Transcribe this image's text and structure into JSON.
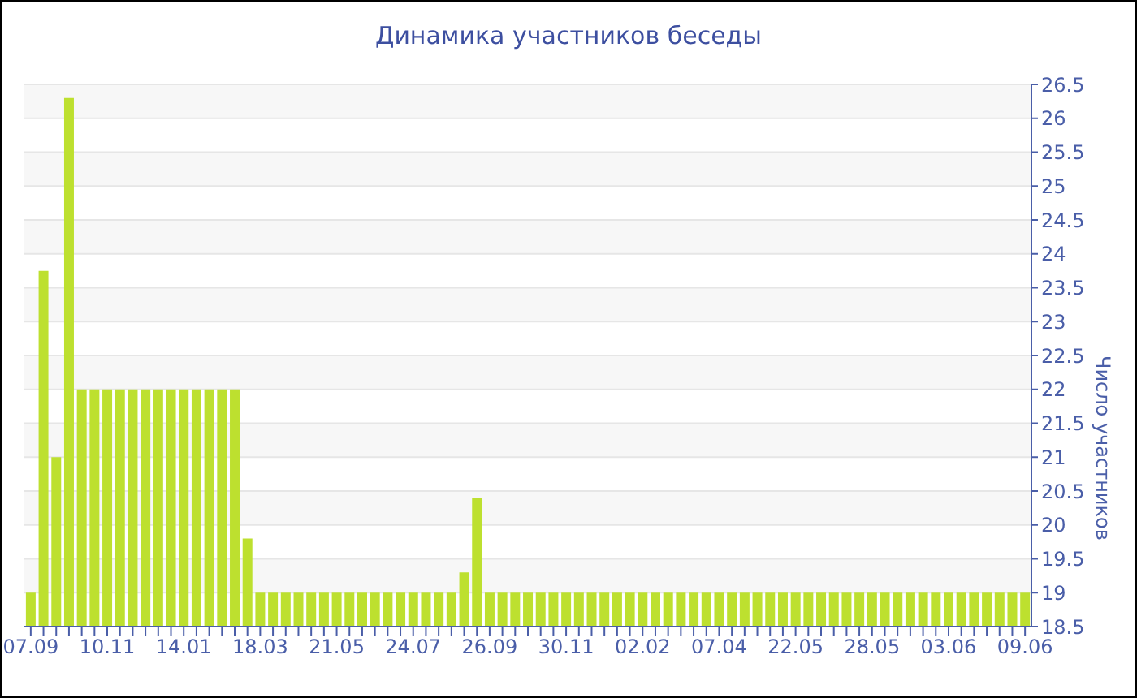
{
  "chart_data": {
    "type": "bar",
    "title": "Динамика участников беседы",
    "ylabel": "Число участников",
    "categories": [
      "07.09",
      null,
      null,
      null,
      null,
      null,
      "10.11",
      null,
      null,
      null,
      null,
      null,
      "14.01",
      null,
      null,
      null,
      null,
      null,
      "18.03",
      null,
      null,
      null,
      null,
      null,
      "21.05",
      null,
      null,
      null,
      null,
      null,
      "24.07",
      null,
      null,
      null,
      null,
      null,
      "26.09",
      null,
      null,
      null,
      null,
      null,
      "30.11",
      null,
      null,
      null,
      null,
      null,
      "02.02",
      null,
      null,
      null,
      null,
      null,
      "07.04",
      null,
      null,
      null,
      null,
      null,
      "22.05",
      null,
      null,
      null,
      null,
      null,
      "28.05",
      null,
      null,
      null,
      null,
      null,
      "03.06",
      null,
      null,
      null,
      null,
      null,
      "09.06"
    ],
    "values": [
      19,
      23.75,
      21,
      26.3,
      22,
      22,
      22,
      22,
      22,
      22,
      22,
      22,
      22,
      22,
      22,
      22,
      22,
      19.8,
      19,
      19,
      19,
      19,
      19,
      19,
      19,
      19,
      19,
      19,
      19,
      19,
      19,
      19,
      19,
      19,
      19.3,
      20.4,
      19,
      19,
      19,
      19,
      19,
      19,
      19,
      19,
      19,
      19,
      19,
      19,
      19,
      19,
      19,
      19,
      19,
      19,
      19,
      19,
      19,
      19,
      19,
      19,
      19,
      19,
      19,
      19,
      19,
      19,
      19,
      19,
      19,
      19,
      19,
      19,
      19,
      19,
      19,
      19,
      19,
      19,
      19
    ],
    "color": "#bde02f",
    "ylim": [
      18.5,
      26.5
    ],
    "yticks": [
      18.5,
      19,
      19.5,
      20,
      20.5,
      21,
      21.5,
      22,
      22.5,
      23,
      23.5,
      24,
      24.5,
      25,
      25.5,
      26,
      26.5
    ],
    "grid": "y"
  }
}
